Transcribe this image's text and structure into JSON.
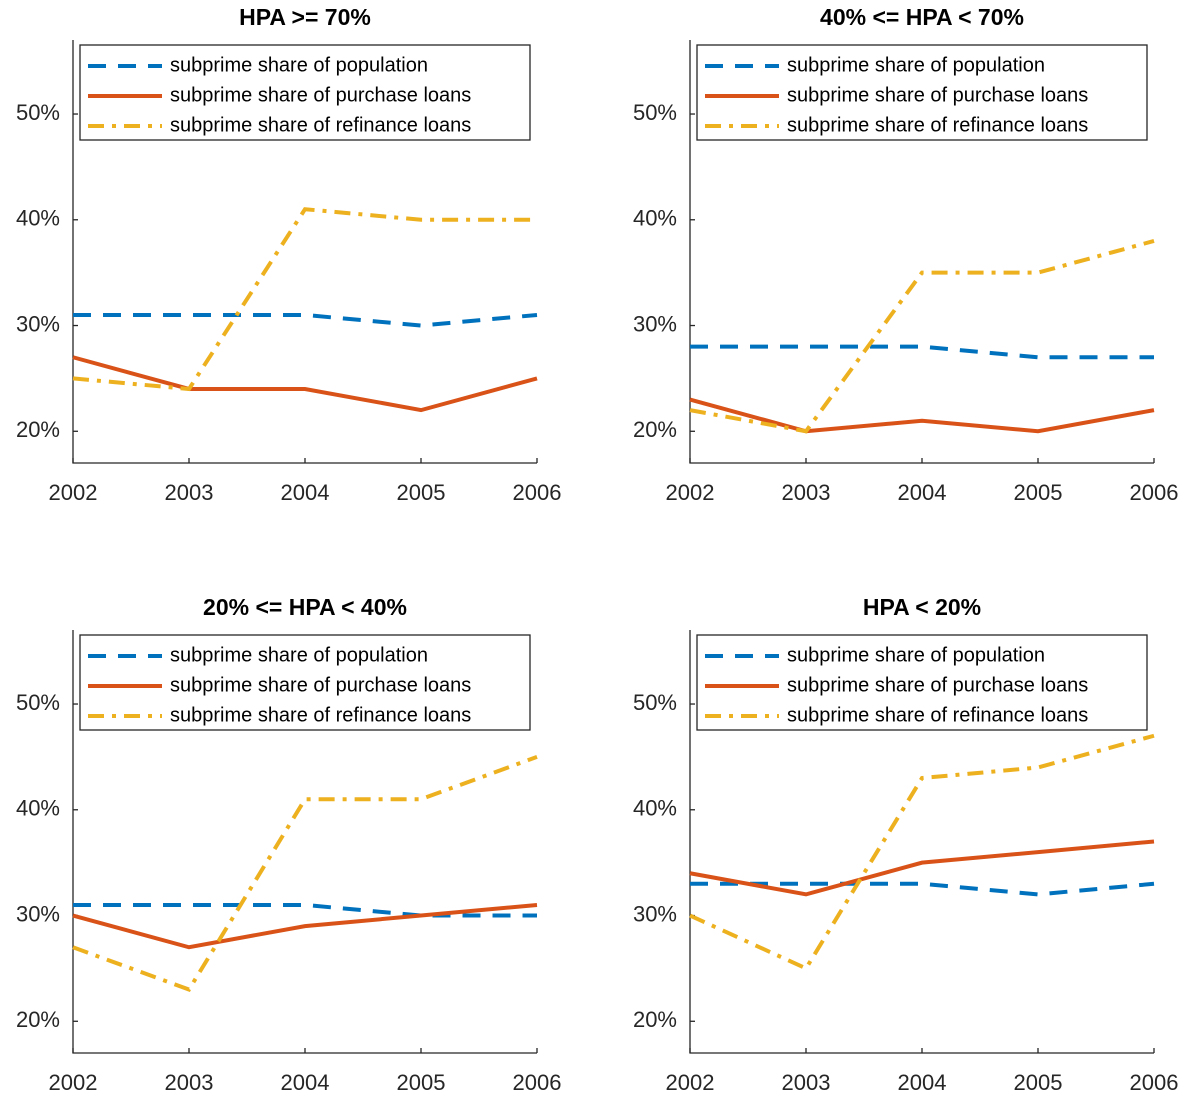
{
  "chart_data": [
    {
      "type": "line",
      "title": "HPA >= 70%",
      "x": [
        2002,
        2003,
        2004,
        2005,
        2006
      ],
      "xlim": [
        2002,
        2006
      ],
      "xticks": [
        2002,
        2003,
        2004,
        2005,
        2006
      ],
      "ylim": [
        17,
        57
      ],
      "yticks": [
        {
          "value": 20,
          "label": "20%"
        },
        {
          "value": 30,
          "label": "30%"
        },
        {
          "value": 40,
          "label": "40%"
        },
        {
          "value": 50,
          "label": "50%"
        }
      ],
      "legend": "upper left",
      "series": [
        {
          "name": "subprime share of population",
          "color": "#0072bd",
          "line_style": "dashed",
          "values": [
            31,
            31,
            31,
            30,
            31
          ]
        },
        {
          "name": "subprime share of purchase loans",
          "color": "#d95319",
          "line_style": "solid",
          "values": [
            27,
            24,
            24,
            22,
            25
          ]
        },
        {
          "name": "subprime share of refinance loans",
          "color": "#edb120",
          "line_style": "dashdot",
          "values": [
            25,
            24,
            41,
            40,
            40
          ]
        }
      ]
    },
    {
      "type": "line",
      "title": "40% <= HPA < 70%",
      "x": [
        2002,
        2003,
        2004,
        2005,
        2006
      ],
      "xlim": [
        2002,
        2006
      ],
      "xticks": [
        2002,
        2003,
        2004,
        2005,
        2006
      ],
      "ylim": [
        17,
        57
      ],
      "yticks": [
        {
          "value": 20,
          "label": "20%"
        },
        {
          "value": 30,
          "label": "30%"
        },
        {
          "value": 40,
          "label": "40%"
        },
        {
          "value": 50,
          "label": "50%"
        }
      ],
      "legend": "upper left",
      "series": [
        {
          "name": "subprime share of population",
          "color": "#0072bd",
          "line_style": "dashed",
          "values": [
            28,
            28,
            28,
            27,
            27
          ]
        },
        {
          "name": "subprime share of purchase loans",
          "color": "#d95319",
          "line_style": "solid",
          "values": [
            23,
            20,
            21,
            20,
            22
          ]
        },
        {
          "name": "subprime share of refinance loans",
          "color": "#edb120",
          "line_style": "dashdot",
          "values": [
            22,
            20,
            35,
            35,
            38
          ]
        }
      ]
    },
    {
      "type": "line",
      "title": "20% <= HPA < 40%",
      "x": [
        2002,
        2003,
        2004,
        2005,
        2006
      ],
      "xlim": [
        2002,
        2006
      ],
      "xticks": [
        2002,
        2003,
        2004,
        2005,
        2006
      ],
      "ylim": [
        17,
        57
      ],
      "yticks": [
        {
          "value": 20,
          "label": "20%"
        },
        {
          "value": 30,
          "label": "30%"
        },
        {
          "value": 40,
          "label": "40%"
        },
        {
          "value": 50,
          "label": "50%"
        }
      ],
      "legend": "upper left",
      "series": [
        {
          "name": "subprime share of population",
          "color": "#0072bd",
          "line_style": "dashed",
          "values": [
            31,
            31,
            31,
            30,
            30
          ]
        },
        {
          "name": "subprime share of purchase loans",
          "color": "#d95319",
          "line_style": "solid",
          "values": [
            30,
            27,
            29,
            30,
            31
          ]
        },
        {
          "name": "subprime share of refinance loans",
          "color": "#edb120",
          "line_style": "dashdot",
          "values": [
            27,
            23,
            41,
            41,
            45
          ]
        }
      ]
    },
    {
      "type": "line",
      "title": "HPA < 20%",
      "x": [
        2002,
        2003,
        2004,
        2005,
        2006
      ],
      "xlim": [
        2002,
        2006
      ],
      "xticks": [
        2002,
        2003,
        2004,
        2005,
        2006
      ],
      "ylim": [
        17,
        57
      ],
      "yticks": [
        {
          "value": 20,
          "label": "20%"
        },
        {
          "value": 30,
          "label": "30%"
        },
        {
          "value": 40,
          "label": "40%"
        },
        {
          "value": 50,
          "label": "50%"
        }
      ],
      "legend": "upper left",
      "series": [
        {
          "name": "subprime share of population",
          "color": "#0072bd",
          "line_style": "dashed",
          "values": [
            33,
            33,
            33,
            32,
            33
          ]
        },
        {
          "name": "subprime share of purchase loans",
          "color": "#d95319",
          "line_style": "solid",
          "values": [
            34,
            32,
            35,
            36,
            37
          ]
        },
        {
          "name": "subprime share of refinance loans",
          "color": "#edb120",
          "line_style": "dashdot",
          "values": [
            30,
            25,
            43,
            44,
            47
          ]
        }
      ]
    }
  ]
}
